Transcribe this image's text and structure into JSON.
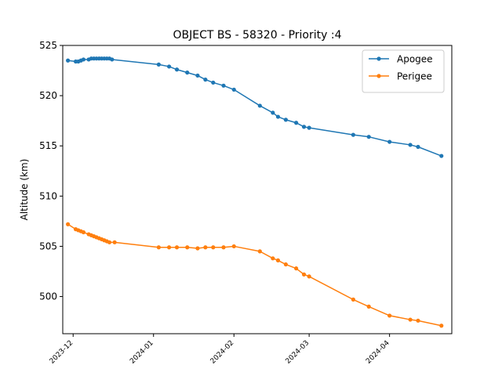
{
  "chart_data": {
    "type": "line",
    "title": "OBJECT BS - 58320 - Priority :4",
    "xlabel": "",
    "ylabel": "Altitude (km)",
    "ylim": [
      496.3,
      525
    ],
    "xlim": [
      "2023-11-27",
      "2024-04-25"
    ],
    "x_ticks": [
      "2023-12",
      "2024-01",
      "2024-02",
      "2024-03",
      "2024-04"
    ],
    "y_ticks": [
      500,
      505,
      510,
      515,
      520,
      525
    ],
    "grid": false,
    "legend_position": "top-right",
    "series": [
      {
        "name": "Apogee",
        "color": "#1f77b4",
        "points": [
          [
            "2023-11-29",
            523.5
          ],
          [
            "2023-12-02",
            523.4
          ],
          [
            "2023-12-03",
            523.4
          ],
          [
            "2023-12-04",
            523.5
          ],
          [
            "2023-12-05",
            523.6
          ],
          [
            "2023-12-07",
            523.6
          ],
          [
            "2023-12-08",
            523.7
          ],
          [
            "2023-12-09",
            523.7
          ],
          [
            "2023-12-10",
            523.7
          ],
          [
            "2023-12-11",
            523.7
          ],
          [
            "2023-12-12",
            523.7
          ],
          [
            "2023-12-13",
            523.7
          ],
          [
            "2023-12-14",
            523.7
          ],
          [
            "2023-12-15",
            523.7
          ],
          [
            "2023-12-16",
            523.6
          ],
          [
            "2024-01-03",
            523.1
          ],
          [
            "2024-01-07",
            522.9
          ],
          [
            "2024-01-10",
            522.6
          ],
          [
            "2024-01-14",
            522.3
          ],
          [
            "2024-01-18",
            522.0
          ],
          [
            "2024-01-21",
            521.6
          ],
          [
            "2024-01-24",
            521.3
          ],
          [
            "2024-01-28",
            521.0
          ],
          [
            "2024-02-01",
            520.6
          ],
          [
            "2024-02-11",
            519.0
          ],
          [
            "2024-02-16",
            518.3
          ],
          [
            "2024-02-18",
            517.9
          ],
          [
            "2024-02-21",
            517.6
          ],
          [
            "2024-02-25",
            517.3
          ],
          [
            "2024-02-28",
            516.9
          ],
          [
            "2024-03-01",
            516.8
          ],
          [
            "2024-03-18",
            516.1
          ],
          [
            "2024-03-24",
            515.9
          ],
          [
            "2024-04-01",
            515.4
          ],
          [
            "2024-04-09",
            515.1
          ],
          [
            "2024-04-12",
            514.9
          ],
          [
            "2024-04-21",
            514.0
          ]
        ]
      },
      {
        "name": "Perigee",
        "color": "#ff7f0e",
        "points": [
          [
            "2023-11-29",
            507.2
          ],
          [
            "2023-12-02",
            506.7
          ],
          [
            "2023-12-03",
            506.6
          ],
          [
            "2023-12-04",
            506.5
          ],
          [
            "2023-12-05",
            506.4
          ],
          [
            "2023-12-07",
            506.2
          ],
          [
            "2023-12-08",
            506.1
          ],
          [
            "2023-12-09",
            506.0
          ],
          [
            "2023-12-10",
            505.9
          ],
          [
            "2023-12-11",
            505.8
          ],
          [
            "2023-12-12",
            505.7
          ],
          [
            "2023-12-13",
            505.6
          ],
          [
            "2023-12-14",
            505.5
          ],
          [
            "2023-12-15",
            505.4
          ],
          [
            "2023-12-17",
            505.4
          ],
          [
            "2024-01-03",
            504.9
          ],
          [
            "2024-01-07",
            504.9
          ],
          [
            "2024-01-10",
            504.9
          ],
          [
            "2024-01-14",
            504.9
          ],
          [
            "2024-01-18",
            504.8
          ],
          [
            "2024-01-21",
            504.9
          ],
          [
            "2024-01-24",
            504.9
          ],
          [
            "2024-01-28",
            504.9
          ],
          [
            "2024-02-01",
            505.0
          ],
          [
            "2024-02-11",
            504.5
          ],
          [
            "2024-02-16",
            503.8
          ],
          [
            "2024-02-18",
            503.6
          ],
          [
            "2024-02-21",
            503.2
          ],
          [
            "2024-02-25",
            502.8
          ],
          [
            "2024-02-28",
            502.2
          ],
          [
            "2024-03-01",
            502.0
          ],
          [
            "2024-03-18",
            499.7
          ],
          [
            "2024-03-24",
            499.0
          ],
          [
            "2024-04-01",
            498.1
          ],
          [
            "2024-04-09",
            497.7
          ],
          [
            "2024-04-12",
            497.6
          ],
          [
            "2024-04-21",
            497.1
          ]
        ]
      }
    ]
  }
}
